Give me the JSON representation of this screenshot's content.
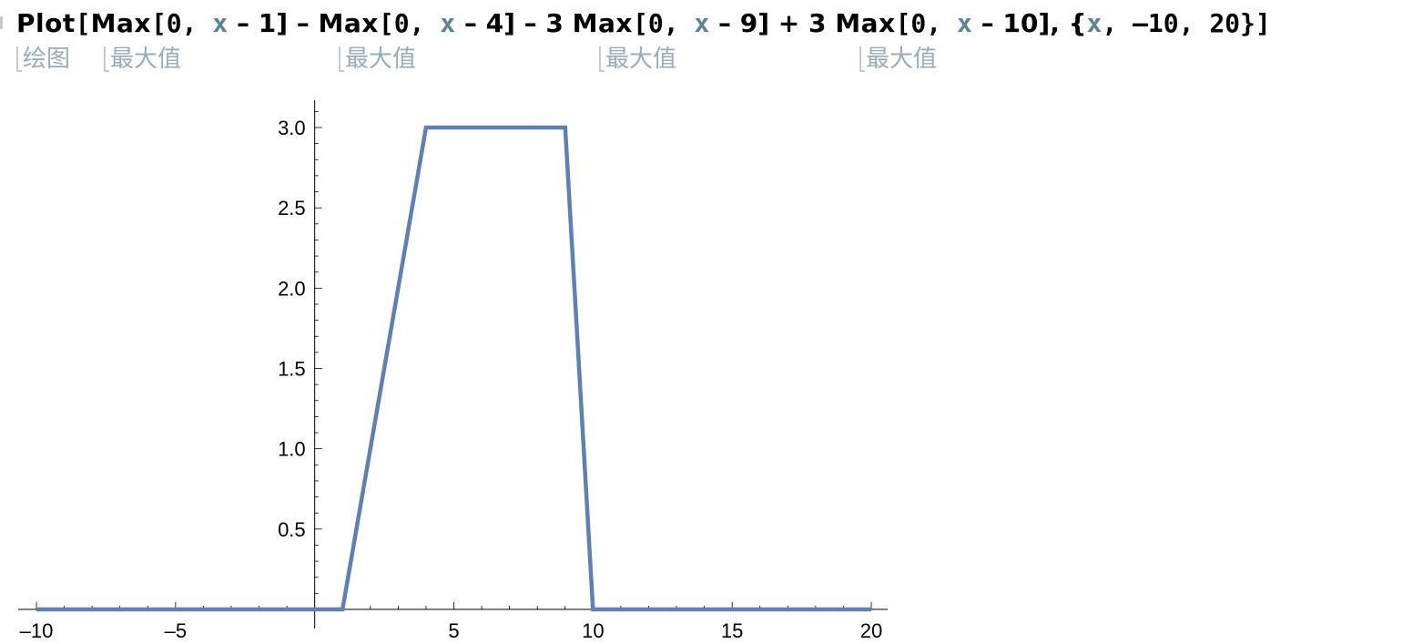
{
  "input": {
    "tokens": [
      {
        "text": "Plot",
        "kind": "fn"
      },
      {
        "text": "[",
        "kind": "punct"
      },
      {
        "text": "Max",
        "kind": "fn"
      },
      {
        "text": "[0, ",
        "kind": "punct"
      },
      {
        "text": "x",
        "kind": "var"
      },
      {
        "text": " – 1] – ",
        "kind": "op"
      },
      {
        "text": "Max",
        "kind": "fn"
      },
      {
        "text": "[0, ",
        "kind": "punct"
      },
      {
        "text": "x",
        "kind": "var"
      },
      {
        "text": " – 4] – 3 ",
        "kind": "op"
      },
      {
        "text": "Max",
        "kind": "fn"
      },
      {
        "text": "[0, ",
        "kind": "punct"
      },
      {
        "text": "x",
        "kind": "var"
      },
      {
        "text": " – 9] + 3 ",
        "kind": "op"
      },
      {
        "text": "Max",
        "kind": "fn"
      },
      {
        "text": "[0, ",
        "kind": "punct"
      },
      {
        "text": "x",
        "kind": "var"
      },
      {
        "text": " – 10], {",
        "kind": "op"
      },
      {
        "text": "x",
        "kind": "var"
      },
      {
        "text": ", –10, 20}]",
        "kind": "punct"
      }
    ]
  },
  "hints": [
    {
      "label": "绘图"
    },
    {
      "label": "最大值"
    },
    {
      "label": "最大值"
    },
    {
      "label": "最大值"
    },
    {
      "label": "最大值"
    }
  ],
  "colors": {
    "series": "#5e81b5",
    "variable": "#5b8596",
    "hint": "#9aabb8"
  },
  "chart_data": {
    "type": "line",
    "series": [
      {
        "x": [
          -10,
          1,
          4,
          9,
          10,
          20
        ],
        "y": [
          0,
          0,
          3,
          3,
          0,
          0
        ]
      }
    ],
    "xlim": [
      -10,
      20
    ],
    "ylim": [
      0,
      3.17
    ],
    "x_ticks": [
      -10,
      -5,
      5,
      10,
      15,
      20
    ],
    "x_tick_labels": [
      "–10",
      "–5",
      "5",
      "10",
      "15",
      "20"
    ],
    "y_ticks": [
      0.5,
      1.0,
      1.5,
      2.0,
      2.5,
      3.0
    ],
    "y_tick_labels": [
      "0.5",
      "1.0",
      "1.5",
      "2.0",
      "2.5",
      "3.0"
    ],
    "grid": false,
    "title": "",
    "xlabel": "",
    "ylabel": ""
  }
}
